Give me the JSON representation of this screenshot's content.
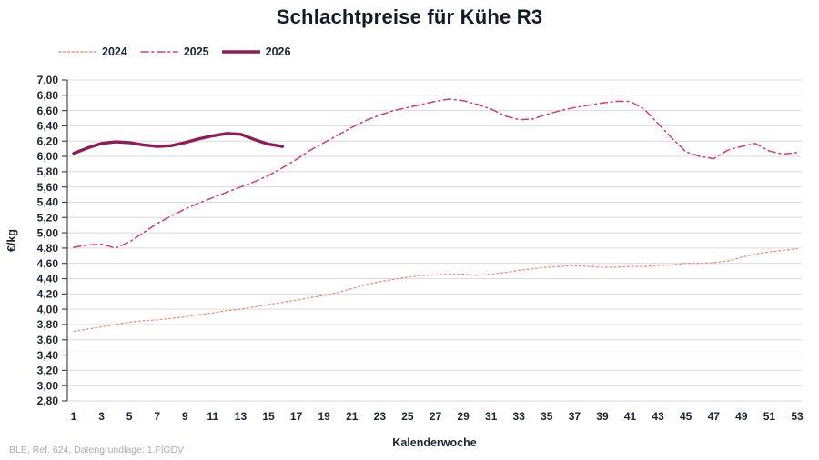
{
  "footer": {
    "source": "BLE, Ref. 624, Datengrundlage: 1.FlGDV"
  },
  "chart_data": {
    "type": "line",
    "title": "Schlachtpreise für Kühe R3",
    "xlabel": "Kalenderwoche",
    "ylabel": "€/kg",
    "ylim": [
      2.8,
      7.0
    ],
    "x_range": [
      1,
      53
    ],
    "grid": "horizontal",
    "legend_position": "top-left",
    "axis_color": "#454b54",
    "grid_color": "#d9d9d9",
    "text_color": "#1b2430",
    "yticks": [
      {
        "value": 7.0,
        "label": "7,00"
      },
      {
        "value": 6.8,
        "label": "6,80"
      },
      {
        "value": 6.6,
        "label": "6,60"
      },
      {
        "value": 6.4,
        "label": "6,40"
      },
      {
        "value": 6.2,
        "label": "6,20"
      },
      {
        "value": 6.0,
        "label": "6,00"
      },
      {
        "value": 5.8,
        "label": "5,80"
      },
      {
        "value": 5.6,
        "label": "5,60"
      },
      {
        "value": 5.4,
        "label": "5,40"
      },
      {
        "value": 5.2,
        "label": "5,20"
      },
      {
        "value": 5.0,
        "label": "5,00"
      },
      {
        "value": 4.8,
        "label": "4,80"
      },
      {
        "value": 4.6,
        "label": "4,60"
      },
      {
        "value": 4.4,
        "label": "4,40"
      },
      {
        "value": 4.2,
        "label": "4,20"
      },
      {
        "value": 4.0,
        "label": "4,00"
      },
      {
        "value": 3.8,
        "label": "3,80"
      },
      {
        "value": 3.6,
        "label": "3,60"
      },
      {
        "value": 3.4,
        "label": "3,40"
      },
      {
        "value": 3.2,
        "label": "3,20"
      },
      {
        "value": 3.0,
        "label": "3,00"
      },
      {
        "value": 2.8,
        "label": "2,80"
      }
    ],
    "xticks": [
      {
        "value": 1,
        "label": "1"
      },
      {
        "value": 3,
        "label": "3"
      },
      {
        "value": 5,
        "label": "5"
      },
      {
        "value": 7,
        "label": "7"
      },
      {
        "value": 9,
        "label": "9"
      },
      {
        "value": 11,
        "label": "11"
      },
      {
        "value": 13,
        "label": "13"
      },
      {
        "value": 15,
        "label": "15"
      },
      {
        "value": 17,
        "label": "17"
      },
      {
        "value": 19,
        "label": "19"
      },
      {
        "value": 21,
        "label": "21"
      },
      {
        "value": 23,
        "label": "23"
      },
      {
        "value": 25,
        "label": "25"
      },
      {
        "value": 27,
        "label": "27"
      },
      {
        "value": 29,
        "label": "29"
      },
      {
        "value": 31,
        "label": "31"
      },
      {
        "value": 33,
        "label": "33"
      },
      {
        "value": 35,
        "label": "35"
      },
      {
        "value": 37,
        "label": "37"
      },
      {
        "value": 39,
        "label": "39"
      },
      {
        "value": 41,
        "label": "41"
      },
      {
        "value": 43,
        "label": "43"
      },
      {
        "value": 45,
        "label": "45"
      },
      {
        "value": 47,
        "label": "47"
      },
      {
        "value": 49,
        "label": "49"
      },
      {
        "value": 51,
        "label": "51"
      },
      {
        "value": 53,
        "label": "53"
      }
    ],
    "series": [
      {
        "name": "2024",
        "color": "#F09080",
        "style": "dotted",
        "width": 1.3,
        "x_start": 1,
        "values": [
          3.71,
          3.74,
          3.77,
          3.8,
          3.83,
          3.85,
          3.86,
          3.88,
          3.9,
          3.93,
          3.95,
          3.98,
          4.0,
          4.03,
          4.06,
          4.09,
          4.12,
          4.15,
          4.18,
          4.22,
          4.27,
          4.32,
          4.36,
          4.39,
          4.42,
          4.44,
          4.45,
          4.46,
          4.46,
          4.44,
          4.46,
          4.48,
          4.51,
          4.53,
          4.55,
          4.56,
          4.57,
          4.56,
          4.55,
          4.55,
          4.56,
          4.56,
          4.57,
          4.58,
          4.6,
          4.6,
          4.61,
          4.63,
          4.68,
          4.72,
          4.75,
          4.77,
          4.79
        ]
      },
      {
        "name": "2025",
        "color": "#DB3A6B",
        "style": "dashdot",
        "width": 1.5,
        "x_start": 1,
        "values": [
          4.81,
          4.84,
          4.85,
          4.8,
          4.88,
          5.0,
          5.12,
          5.22,
          5.31,
          5.39,
          5.46,
          5.53,
          5.6,
          5.67,
          5.75,
          5.85,
          5.96,
          6.08,
          6.18,
          6.28,
          6.38,
          6.47,
          6.54,
          6.6,
          6.64,
          6.68,
          6.72,
          6.75,
          6.73,
          6.68,
          6.62,
          6.53,
          6.48,
          6.49,
          6.55,
          6.6,
          6.64,
          6.67,
          6.7,
          6.72,
          6.72,
          6.62,
          6.43,
          6.24,
          6.06,
          6.0,
          5.97,
          6.08,
          6.13,
          6.17,
          6.07,
          6.03,
          6.05
        ]
      },
      {
        "name": "2026",
        "color": "#8C1D57",
        "style": "solid",
        "width": 3.4,
        "x_start": 1,
        "values": [
          6.04,
          6.11,
          6.17,
          6.19,
          6.18,
          6.15,
          6.13,
          6.14,
          6.18,
          6.23,
          6.27,
          6.3,
          6.29,
          6.22,
          6.16,
          6.13
        ]
      }
    ]
  }
}
